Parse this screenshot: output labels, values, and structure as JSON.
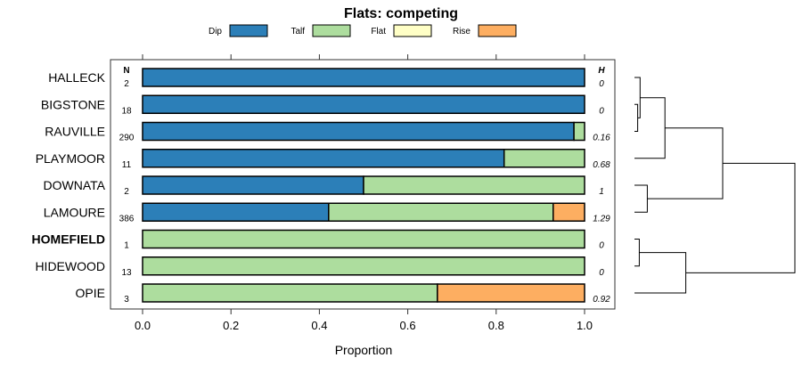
{
  "chart_data": {
    "type": "bar",
    "orientation": "horizontal-stacked",
    "title": "Flats: competing",
    "xlabel": "Proportion",
    "xlim": [
      0,
      1
    ],
    "xticks": [
      "0.0",
      "0.2",
      "0.4",
      "0.6",
      "0.8",
      "1.0"
    ],
    "legend": [
      {
        "name": "Dip",
        "color": "#2c7fb8"
      },
      {
        "name": "Talf",
        "color": "#addd9e"
      },
      {
        "name": "Flat",
        "color": "#ffffc6"
      },
      {
        "name": "Rise",
        "color": "#fdae61"
      }
    ],
    "n_header": "N",
    "h_header": "H",
    "categories": [
      "HALLECK",
      "BIGSTONE",
      "RAUVILLE",
      "PLAYMOOR",
      "DOWNATA",
      "LAMOURE",
      "HOMEFIELD",
      "HIDEWOOD",
      "OPIE"
    ],
    "bold_category": "HOMEFIELD",
    "n": [
      "2",
      "18",
      "290",
      "11",
      "2",
      "386",
      "1",
      "13",
      "3"
    ],
    "h": [
      "0",
      "0",
      "0.16",
      "0.68",
      "1",
      "1.29",
      "0",
      "0",
      "0.92"
    ],
    "series": [
      {
        "name": "Dip",
        "values": [
          1,
          1,
          0.976,
          0.818,
          0.5,
          0.421,
          0,
          0,
          0
        ]
      },
      {
        "name": "Talf",
        "values": [
          0,
          0,
          0.024,
          0.182,
          0.5,
          0.508,
          1,
          1,
          0.667
        ]
      },
      {
        "name": "Flat",
        "values": [
          0,
          0,
          0,
          0,
          0,
          0,
          0,
          0,
          0
        ]
      },
      {
        "name": "Rise",
        "values": [
          0,
          0,
          0,
          0,
          0,
          0.071,
          0,
          0,
          0.333
        ]
      }
    ],
    "dendrogram": {
      "merges": [
        {
          "a": "BIGSTONE",
          "b": "RAUVILLE",
          "id": "c1",
          "height": 0.02
        },
        {
          "a": "HALLECK",
          "b": "c1",
          "id": "c2",
          "height": 0.035
        },
        {
          "a": "c2",
          "b": "PLAYMOOR",
          "id": "c3",
          "height": 0.19
        },
        {
          "a": "DOWNATA",
          "b": "LAMOURE",
          "id": "c4",
          "height": 0.08
        },
        {
          "a": "c3",
          "b": "c4",
          "id": "c5",
          "height": 0.55
        },
        {
          "a": "HOMEFIELD",
          "b": "HIDEWOOD",
          "id": "c6",
          "height": 0.03
        },
        {
          "a": "c6",
          "b": "OPIE",
          "id": "c7",
          "height": 0.32
        },
        {
          "a": "c5",
          "b": "c7",
          "id": "root",
          "height": 1.0
        }
      ]
    }
  }
}
